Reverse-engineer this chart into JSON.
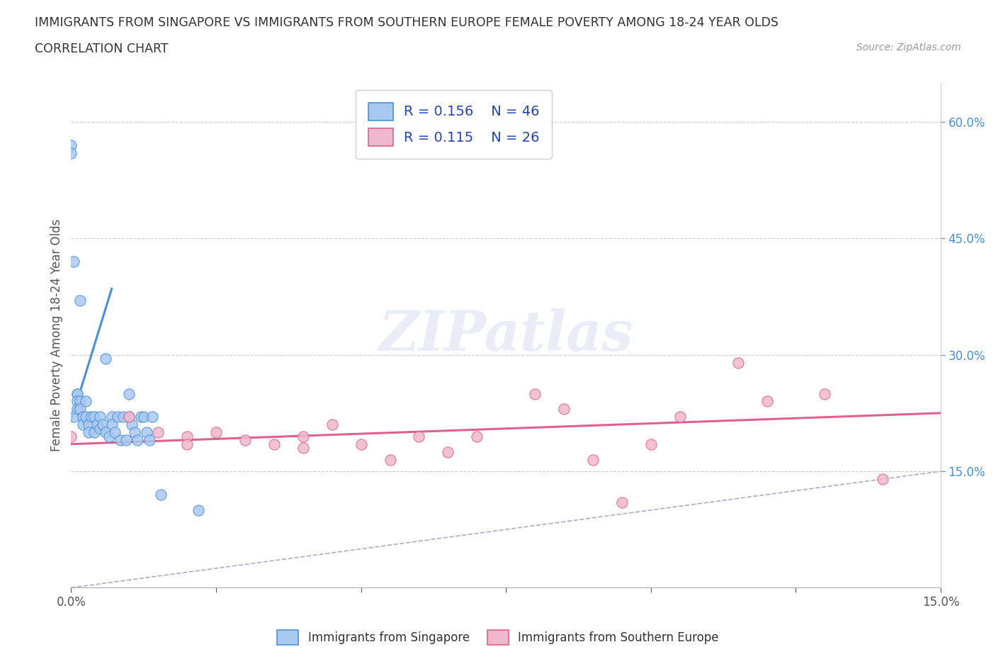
{
  "title_line1": "IMMIGRANTS FROM SINGAPORE VS IMMIGRANTS FROM SOUTHERN EUROPE FEMALE POVERTY AMONG 18-24 YEAR OLDS",
  "title_line2": "CORRELATION CHART",
  "source_text": "Source: ZipAtlas.com",
  "ylabel": "Female Poverty Among 18-24 Year Olds",
  "xlim": [
    0.0,
    15.0
  ],
  "ylim": [
    0.0,
    65.0
  ],
  "xticks": [
    0.0,
    2.5,
    5.0,
    7.5,
    10.0,
    12.5,
    15.0
  ],
  "xticklabels": [
    "0.0%",
    "",
    "",
    "",
    "",
    "",
    "15.0%"
  ],
  "yticks_right": [
    15.0,
    30.0,
    45.0,
    60.0
  ],
  "ytick_right_labels": [
    "15.0%",
    "30.0%",
    "45.0%",
    "60.0%"
  ],
  "singapore_R": 0.156,
  "singapore_N": 46,
  "southern_europe_R": 0.115,
  "southern_europe_N": 26,
  "singapore_color": "#a8c8f0",
  "singapore_line_color": "#4a90d9",
  "southern_europe_color": "#f0b8cc",
  "southern_europe_line_color": "#e06090",
  "ref_line_color": "#aaaacc",
  "background_color": "#ffffff",
  "watermark": "ZIPatlas",
  "singapore_x": [
    0.0,
    0.0,
    0.05,
    0.05,
    0.1,
    0.1,
    0.1,
    0.1,
    0.15,
    0.15,
    0.15,
    0.2,
    0.2,
    0.25,
    0.25,
    0.3,
    0.3,
    0.35,
    0.4,
    0.4,
    0.45,
    0.5,
    0.5,
    0.55,
    0.6,
    0.6,
    0.65,
    0.7,
    0.7,
    0.75,
    0.8,
    0.85,
    0.9,
    0.95,
    1.0,
    1.0,
    1.05,
    1.1,
    1.15,
    1.2,
    1.25,
    1.3,
    1.35,
    1.4,
    1.55,
    2.2
  ],
  "singapore_y": [
    57.0,
    56.0,
    42.0,
    22.0,
    25.0,
    25.0,
    24.0,
    23.0,
    37.0,
    24.0,
    23.0,
    22.0,
    21.0,
    24.0,
    22.0,
    21.0,
    20.0,
    22.0,
    20.0,
    22.0,
    21.0,
    20.5,
    22.0,
    21.0,
    29.5,
    20.0,
    19.5,
    22.0,
    21.0,
    20.0,
    22.0,
    19.0,
    22.0,
    19.0,
    25.0,
    22.0,
    21.0,
    20.0,
    19.0,
    22.0,
    22.0,
    20.0,
    19.0,
    22.0,
    12.0,
    10.0
  ],
  "southern_europe_x": [
    0.0,
    1.0,
    1.5,
    2.0,
    2.0,
    2.5,
    3.0,
    3.5,
    4.0,
    4.0,
    4.5,
    5.0,
    5.5,
    6.0,
    6.5,
    7.0,
    8.0,
    8.5,
    9.0,
    9.5,
    10.0,
    10.5,
    11.5,
    12.0,
    13.0,
    14.0
  ],
  "southern_europe_y": [
    19.5,
    22.0,
    20.0,
    19.5,
    18.5,
    20.0,
    19.0,
    18.5,
    19.5,
    18.0,
    21.0,
    18.5,
    16.5,
    19.5,
    17.5,
    19.5,
    25.0,
    23.0,
    16.5,
    11.0,
    18.5,
    22.0,
    29.0,
    24.0,
    25.0,
    14.0
  ],
  "sing_trend_x": [
    0.0,
    0.7
  ],
  "sing_trend_y": [
    21.5,
    38.5
  ],
  "se_trend_x": [
    0.0,
    15.0
  ],
  "se_trend_y": [
    18.5,
    22.5
  ]
}
